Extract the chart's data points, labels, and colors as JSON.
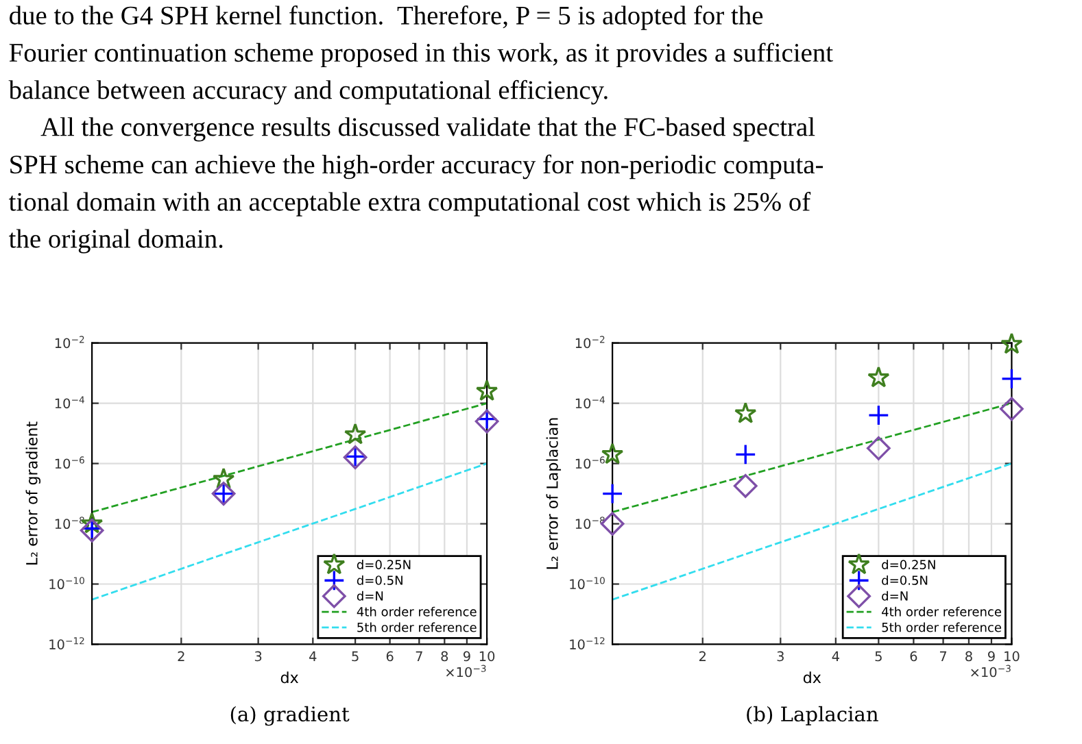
{
  "chart_data": [
    {
      "type": "scatter",
      "xlabel": "dx",
      "ylabel": "L₂ error of gradient",
      "log": "xy",
      "grid": true,
      "legend": "bottom right",
      "xlim": [
        1.25,
        10
      ],
      "xticks": [
        2,
        3,
        4,
        5,
        6,
        7,
        8,
        9,
        10
      ],
      "ylim": [
        1e-12,
        0.01
      ],
      "yticks": [
        {
          "value": 1e-12,
          "label": "10$^{−12}$"
        },
        {
          "value": 1e-10,
          "label": "10$^{−10}$"
        },
        {
          "value": 1e-08,
          "label": "10$^{−8}$"
        },
        {
          "value": 1e-06,
          "label": "10$^{−6}$"
        },
        {
          "value": 0.0001,
          "label": "10$^{−4}$"
        },
        {
          "value": 0.01,
          "label": "10$^{−2}$"
        }
      ],
      "x": [
        1.25,
        2.5,
        5,
        10
      ],
      "series": [
        {
          "name": "d=0.25N",
          "marker": "star",
          "color": "#3f7f1f",
          "values": [
            1e-08,
            3e-07,
            9e-06,
            0.00025
          ]
        },
        {
          "name": "d=0.5N",
          "marker": "cross",
          "color": "#0000ff",
          "values": [
            7e-09,
            1e-07,
            1.7e-06,
            3e-05
          ]
        },
        {
          "name": "d=N",
          "marker": "diamond",
          "color": "#7e4fa8",
          "values": [
            6e-09,
            1e-07,
            1.6e-06,
            2.5e-05
          ]
        },
        {
          "name": "4th order reference",
          "type": "line",
          "line_style": "dashed",
          "color": "#22a022",
          "values": [
            2.44e-08,
            3.9e-07,
            6.25e-06,
            0.0001
          ]
        },
        {
          "name": "5th order reference",
          "type": "line",
          "line_style": "dashed",
          "color": "#33ddee",
          "values": [
            3.05e-11,
            9.8e-10,
            3.1e-08,
            1e-06
          ]
        }
      ],
      "annotations": [
        "×10$^{−3}$",
        "(a) gradient",
        "due to the G4 SPH kernel function.  Therefore, P = 5 is adopted for the",
        "Fourier continuation scheme proposed in this work, as it provides a sufficient",
        "balance between accuracy and computational efficiency.",
        "     All the convergence results discussed validate that the FC-based spectral",
        "SPH scheme can achieve the high-order accuracy for non-periodic computa-",
        "tional domain with an acceptable extra computational cost which is 25% of",
        "the original domain."
      ]
    },
    {
      "type": "scatter",
      "xlabel": "dx",
      "ylabel": "L₂ error of Laplacian",
      "log": "xy",
      "grid": true,
      "legend": "bottom right",
      "xlim": [
        1.25,
        10
      ],
      "xticks": [
        2,
        3,
        4,
        5,
        6,
        7,
        8,
        9,
        10
      ],
      "ylim": [
        1e-12,
        0.01
      ],
      "yticks": [
        {
          "value": 1e-12,
          "label": "10$^{−12}$"
        },
        {
          "value": 1e-10,
          "label": "10$^{−10}$"
        },
        {
          "value": 1e-08,
          "label": "10$^{−8}$"
        },
        {
          "value": 1e-06,
          "label": "10$^{−6}$"
        },
        {
          "value": 0.0001,
          "label": "10$^{−4}$"
        },
        {
          "value": 0.01,
          "label": "10$^{−2}$"
        }
      ],
      "x": [
        1.25,
        2.5,
        5,
        10
      ],
      "series": [
        {
          "name": "d=0.25N",
          "marker": "star",
          "color": "#3f7f1f",
          "values": [
            2e-06,
            4.5e-05,
            0.0007,
            0.009
          ]
        },
        {
          "name": "d=0.5N",
          "marker": "cross",
          "color": "#0000ff",
          "values": [
            1e-07,
            2e-06,
            4e-05,
            0.00065
          ]
        },
        {
          "name": "d=N",
          "marker": "diamond",
          "color": "#7e4fa8",
          "values": [
            1e-08,
            1.8e-07,
            3.2e-06,
            6.5e-05
          ]
        },
        {
          "name": "4th order reference",
          "type": "line",
          "line_style": "dashed",
          "color": "#22a022",
          "values": [
            2.44e-08,
            3.9e-07,
            6.25e-06,
            0.0001
          ]
        },
        {
          "name": "5th order reference",
          "type": "line",
          "line_style": "dashed",
          "color": "#33ddee",
          "values": [
            3.05e-11,
            9.8e-10,
            3.1e-08,
            1e-06
          ]
        }
      ],
      "annotations": [
        "×10$^{−3}$",
        "(b) Laplacian"
      ]
    }
  ]
}
